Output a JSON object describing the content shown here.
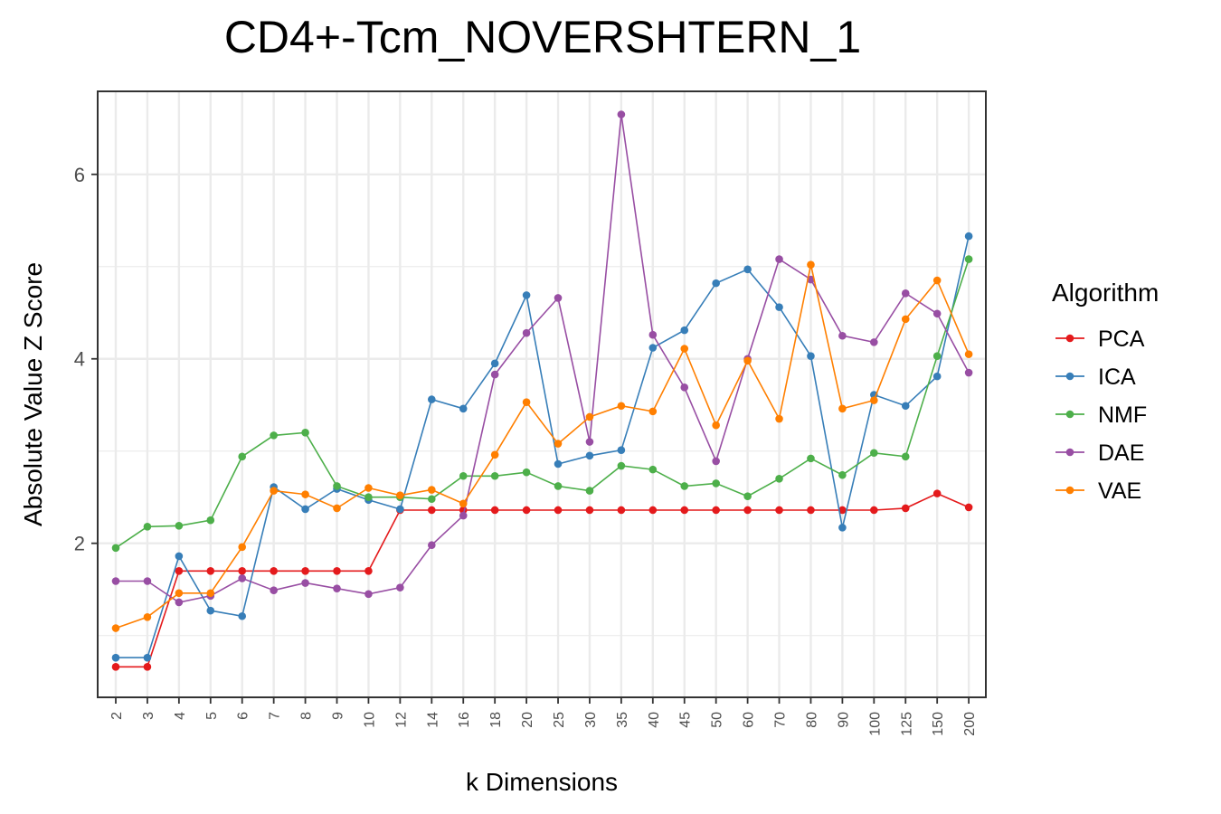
{
  "chart_data": {
    "type": "line",
    "title": "CD4+-Tcm_NOVERSHTERN_1",
    "xlabel": "k Dimensions",
    "ylabel": "Absolute Value Z Score",
    "categories": [
      "2",
      "3",
      "4",
      "5",
      "6",
      "7",
      "8",
      "9",
      "10",
      "12",
      "14",
      "16",
      "18",
      "20",
      "25",
      "30",
      "35",
      "40",
      "45",
      "50",
      "60",
      "70",
      "80",
      "90",
      "100",
      "125",
      "150",
      "200"
    ],
    "ylim": [
      0.33,
      6.9
    ],
    "yticks": [
      2,
      4,
      6
    ],
    "grid": true,
    "legend": {
      "title": "Algorithm",
      "position": "right"
    },
    "series": [
      {
        "name": "PCA",
        "color": "#E41A1C",
        "values": [
          0.66,
          0.66,
          1.7,
          1.7,
          1.7,
          1.7,
          1.7,
          1.7,
          1.7,
          2.36,
          2.36,
          2.36,
          2.36,
          2.36,
          2.36,
          2.36,
          2.36,
          2.36,
          2.36,
          2.36,
          2.36,
          2.36,
          2.36,
          2.36,
          2.36,
          2.38,
          2.54,
          2.39
        ]
      },
      {
        "name": "ICA",
        "color": "#377EB8",
        "values": [
          0.76,
          0.76,
          1.86,
          1.27,
          1.21,
          2.61,
          2.37,
          2.59,
          2.47,
          2.37,
          3.56,
          3.46,
          3.95,
          4.69,
          2.86,
          2.95,
          3.01,
          4.12,
          4.31,
          4.82,
          4.97,
          4.56,
          4.03,
          2.17,
          3.61,
          3.49,
          3.81,
          5.33
        ]
      },
      {
        "name": "NMF",
        "color": "#4DAF4A",
        "values": [
          1.95,
          2.18,
          2.19,
          2.25,
          2.94,
          3.17,
          3.2,
          2.62,
          2.5,
          2.5,
          2.48,
          2.73,
          2.73,
          2.77,
          2.62,
          2.57,
          2.84,
          2.8,
          2.62,
          2.65,
          2.51,
          2.7,
          2.92,
          2.74,
          2.98,
          2.94,
          4.03,
          5.08
        ]
      },
      {
        "name": "DAE",
        "color": "#984EA3",
        "values": [
          1.59,
          1.59,
          1.36,
          1.43,
          1.62,
          1.49,
          1.57,
          1.51,
          1.45,
          1.52,
          1.98,
          2.3,
          3.83,
          4.28,
          4.66,
          3.1,
          6.65,
          4.26,
          3.69,
          2.89,
          4.0,
          5.08,
          4.86,
          4.25,
          4.18,
          4.71,
          4.49,
          3.85
        ]
      },
      {
        "name": "VAE",
        "color": "#FF7F00",
        "values": [
          1.08,
          1.2,
          1.46,
          1.46,
          1.96,
          2.57,
          2.53,
          2.38,
          2.6,
          2.52,
          2.58,
          2.43,
          2.96,
          3.53,
          3.08,
          3.37,
          3.49,
          3.43,
          4.11,
          3.28,
          3.98,
          3.35,
          5.02,
          3.46,
          3.55,
          4.43,
          4.85,
          4.05
        ]
      }
    ]
  }
}
